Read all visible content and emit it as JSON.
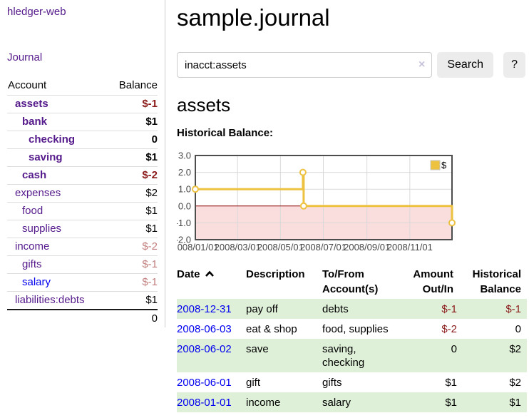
{
  "app": {
    "brand": "hledger-web",
    "nav_journal": "Journal"
  },
  "colors": {
    "link_purple": "#551a8b",
    "link_blue": "#0000ee",
    "negative_strong": "#8b1a1a",
    "negative_light": "#c17d7d",
    "row_green": "#dff0d8",
    "series_yellow": "#edc240"
  },
  "sidebar": {
    "table_headers": {
      "account": "Account",
      "balance": "Balance"
    },
    "accounts": [
      {
        "name": "assets",
        "balance": "$-1"
      },
      {
        "name": "bank",
        "balance": "$1"
      },
      {
        "name": "checking",
        "balance": "0"
      },
      {
        "name": "saving",
        "balance": "$1"
      },
      {
        "name": "cash",
        "balance": "$-2"
      },
      {
        "name": "expenses",
        "balance": "$2"
      },
      {
        "name": "food",
        "balance": "$1"
      },
      {
        "name": "supplies",
        "balance": "$1"
      },
      {
        "name": "income",
        "balance": "$-2"
      },
      {
        "name": "gifts",
        "balance": "$-1"
      },
      {
        "name": "salary",
        "balance": "$-1"
      },
      {
        "name": "liabilities:debts",
        "balance": "$1"
      }
    ],
    "total": "0"
  },
  "main": {
    "title": "sample.journal",
    "search": {
      "value": "inacct:assets",
      "clear_icon": "×",
      "search_button": "Search",
      "help_button": "?"
    },
    "account_heading": "assets"
  },
  "chart_data": {
    "type": "line",
    "step": true,
    "title": "Historical Balance:",
    "legend": [
      {
        "label": "$",
        "color": "#edc240"
      }
    ],
    "x_range_days": [
      0,
      365
    ],
    "y_range": [
      -2,
      3
    ],
    "x_ticks": [
      {
        "label": "2008/01/01",
        "day": 0
      },
      {
        "label": "2008/03/01",
        "day": 60
      },
      {
        "label": "2008/05/01",
        "day": 121
      },
      {
        "label": "2008/07/01",
        "day": 182
      },
      {
        "label": "2008/09/01",
        "day": 244
      },
      {
        "label": "2008/11/01",
        "day": 305
      }
    ],
    "y_ticks": [
      {
        "label": "3.0",
        "value": 3
      },
      {
        "label": "2.0",
        "value": 2
      },
      {
        "label": "1.0",
        "value": 1
      },
      {
        "label": "0.0",
        "value": 0
      },
      {
        "label": "-1.0",
        "value": -1
      },
      {
        "label": "-2.0",
        "value": -2
      }
    ],
    "series": [
      {
        "name": "$",
        "color": "#edc240",
        "points": [
          {
            "date": "2008-01-01",
            "day": 0,
            "value": 1
          },
          {
            "date": "2008-06-02",
            "day": 153,
            "value": 2
          },
          {
            "date": "2008-06-03",
            "day": 154,
            "value": 0
          },
          {
            "date": "2008-12-31",
            "day": 365,
            "value": -1
          }
        ]
      }
    ],
    "style": {
      "negative_region": "#fadddd",
      "zero_line": "#8b0000",
      "grid": "#d9d9d9",
      "frame": "#4d4d4d",
      "tick_text": "#484848"
    }
  },
  "journal_table": {
    "headers": {
      "date": "Date",
      "description": "Description",
      "tofrom_line1": "To/From",
      "tofrom_line2": "Account(s)",
      "amount_line1": "Amount",
      "amount_line2": "Out/In",
      "hist_line1": "Historical",
      "hist_line2": "Balance"
    },
    "rows": [
      {
        "date": "2008-12-31",
        "description": "pay off",
        "accounts": "debts",
        "amount": "$-1",
        "balance": "$-1"
      },
      {
        "date": "2008-06-03",
        "description": "eat & shop",
        "accounts": "food, supplies",
        "amount": "$-2",
        "balance": "0"
      },
      {
        "date": "2008-06-02",
        "description": "save",
        "accounts": "saving, checking",
        "amount": "0",
        "balance": "$2"
      },
      {
        "date": "2008-06-01",
        "description": "gift",
        "accounts": "gifts",
        "amount": "$1",
        "balance": "$2"
      },
      {
        "date": "2008-01-01",
        "description": "income",
        "accounts": "salary",
        "amount": "$1",
        "balance": "$1"
      }
    ]
  }
}
